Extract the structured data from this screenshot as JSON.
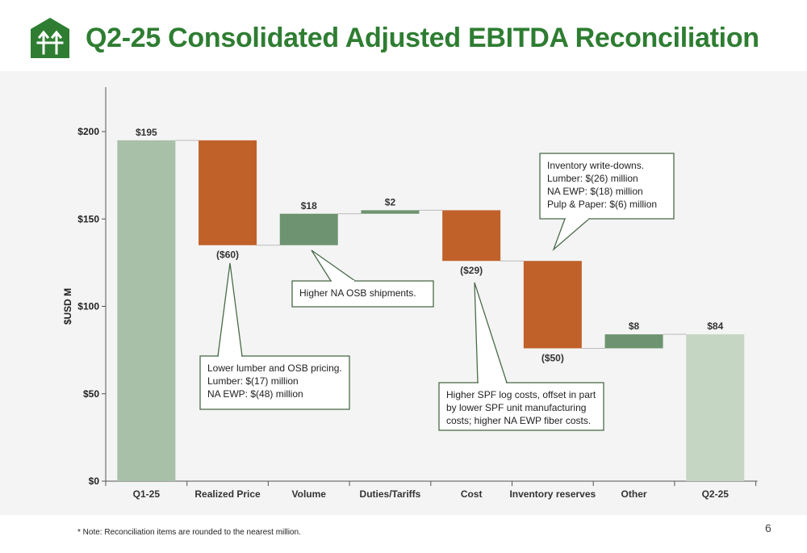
{
  "header": {
    "title": "Q2-25 Consolidated Adjusted EBITDA Reconciliation",
    "logo_icon": "company-logo-icon"
  },
  "footer": {
    "note": "* Note: Reconciliation items are rounded to the nearest million.",
    "page_number": "6"
  },
  "colors": {
    "brand_green": "#2e7d32",
    "total_start": "#a8bfa8",
    "total_end": "#c5d6c3",
    "increase": "#6e9370",
    "decrease": "#c0612a",
    "background": "#f4f4f4"
  },
  "chart_data": {
    "type": "bar",
    "subtype": "waterfall",
    "title": "Q2-25 Consolidated Adjusted EBITDA Reconciliation",
    "ylabel": "$USD M",
    "xlabel": "",
    "ylim": [
      0,
      225
    ],
    "yticks": [
      0,
      50,
      100,
      150,
      200
    ],
    "ytick_labels": [
      "$0",
      "$50",
      "$100",
      "$150",
      "$200"
    ],
    "grid": false,
    "categories": [
      "Q1-25",
      "Realized Price",
      "Volume",
      "Duties/Tariffs",
      "Cost",
      "Inventory reserves",
      "Other",
      "Q2-25"
    ],
    "values": [
      195,
      -60,
      18,
      2,
      -29,
      -50,
      8,
      84
    ],
    "kinds": [
      "total",
      "delta",
      "delta",
      "delta",
      "delta",
      "delta",
      "delta",
      "total"
    ],
    "value_labels": [
      "$195",
      "($60)",
      "$18",
      "$2",
      "($29)",
      "($50)",
      "$8",
      "$84"
    ],
    "annotations": [
      {
        "category": "Realized Price",
        "lines": [
          "Lower lumber and OSB pricing.",
          "Lumber: $(17) million",
          "NA EWP: $(48) million"
        ]
      },
      {
        "category": "Volume",
        "lines": [
          "Higher NA OSB shipments."
        ]
      },
      {
        "category": "Cost",
        "lines": [
          "Higher SPF log costs, offset in part",
          "by lower SPF unit manufacturing",
          "costs; higher NA EWP fiber costs."
        ]
      },
      {
        "category": "Inventory reserves",
        "lines": [
          "Inventory write-downs.",
          "Lumber: $(26) million",
          "NA EWP: $(18) million",
          "Pulp & Paper: $(6) million"
        ]
      }
    ]
  }
}
